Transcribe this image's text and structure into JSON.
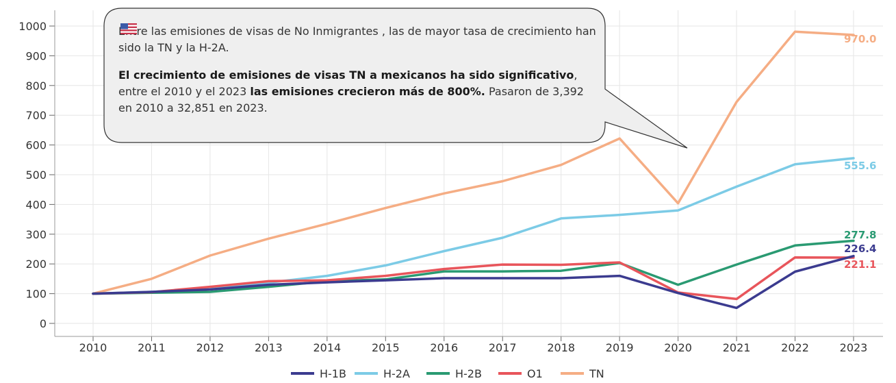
{
  "chart_data": {
    "type": "line",
    "categories": [
      "2010",
      "2011",
      "2012",
      "2013",
      "2014",
      "2015",
      "2016",
      "2017",
      "2018",
      "2019",
      "2020",
      "2021",
      "2022",
      "2023"
    ],
    "ylim": [
      0,
      1000
    ],
    "yticks": [
      0,
      100,
      200,
      300,
      400,
      500,
      600,
      700,
      800,
      900,
      1000
    ],
    "grid": true,
    "legend_position": "bottom",
    "series": [
      {
        "name": "H-1B",
        "color": "#3b3b8f",
        "end_label": "226.4",
        "values": [
          100,
          106,
          114,
          130,
          138,
          145,
          152,
          152,
          152,
          160,
          102,
          52,
          174,
          226.4
        ]
      },
      {
        "name": "H-2A",
        "color": "#7ccbe6",
        "end_label": "555.6",
        "values": [
          100,
          106,
          115,
          137,
          160,
          195,
          243,
          288,
          353,
          365,
          380,
          460,
          535,
          555.6
        ]
      },
      {
        "name": "H-2B",
        "color": "#2a9a72",
        "end_label": "277.8",
        "values": [
          100,
          103,
          106,
          123,
          142,
          148,
          175,
          175,
          177,
          203,
          130,
          198,
          262,
          277.8
        ]
      },
      {
        "name": "O1",
        "color": "#e8555b",
        "end_label": "221.1",
        "values": [
          100,
          105,
          123,
          142,
          145,
          160,
          183,
          198,
          197,
          205,
          104,
          82,
          222,
          221.1
        ]
      },
      {
        "name": "TN",
        "color": "#f5ad84",
        "end_label": "970.0",
        "values": [
          100,
          150,
          228,
          285,
          335,
          388,
          437,
          478,
          533,
          622,
          404,
          745,
          981,
          970.0
        ]
      }
    ]
  },
  "callout": {
    "line1_a": "Entre las emisiones de visas de No Inmigrantes",
    "line1_b": ", las de mayor tasa de crecimiento han sido la TN y la H-2A.",
    "p2_bold1": "El crecimiento de emisiones de visas TN a mexicanos ha sido significativo",
    "p2_text1": ", entre el 2010 y el 2023 ",
    "p2_bold2": "las emisiones crecieron más de 800%.",
    "p2_text2": " Pasaron de 3,392 en 2010 a 32,851 en 2023."
  },
  "flag_icon": "us-flag-icon",
  "colors": {
    "grid": "#e6e6e6",
    "callout_bg": "#efefef",
    "callout_border": "#333333"
  }
}
